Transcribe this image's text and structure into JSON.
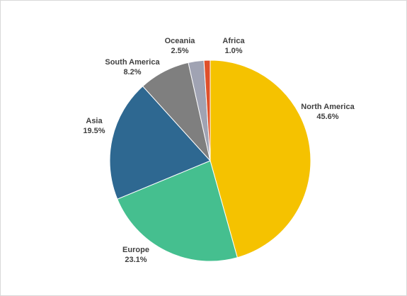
{
  "chart_data": {
    "type": "pie",
    "categories": [
      "North America",
      "Europe",
      "Asia",
      "South America",
      "Oceania",
      "Africa"
    ],
    "values": [
      45.6,
      23.1,
      19.5,
      8.2,
      2.5,
      1.0
    ],
    "value_labels": [
      "45.6%",
      "23.1%",
      "19.5%",
      "8.2%",
      "2.5%",
      "1.0%"
    ],
    "colors": [
      "#f5c200",
      "#45bf8f",
      "#2e6891",
      "#7f7f7f",
      "#a0a3b3",
      "#e0502a"
    ]
  }
}
